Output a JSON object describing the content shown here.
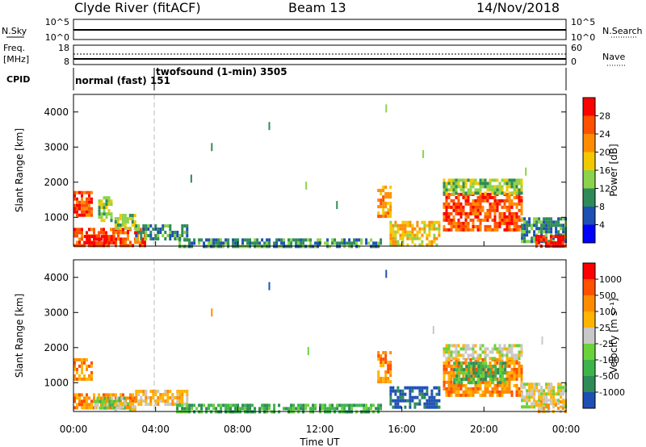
{
  "header": {
    "station": "Clyde River (fitACF)",
    "beam": "Beam 13",
    "date": "14/Nov/2018"
  },
  "status_panels": {
    "nsky": {
      "label": "N.Sky",
      "ticks": [
        "10^5",
        "10^0"
      ]
    },
    "nsearch": {
      "label": "N.Search",
      "ticks": [
        "10^5",
        "10^0"
      ]
    },
    "freq": {
      "label_line1": "Freq.",
      "label_line2": "[MHz]",
      "ticks": [
        "18",
        "8"
      ]
    },
    "nave": {
      "label": "Nave",
      "ticks": [
        "60",
        "0"
      ]
    },
    "cpid": {
      "label": "CPID",
      "segments": [
        {
          "text": "normal (fast) 151",
          "start_hour": 0.0,
          "end_hour": 4.0
        },
        {
          "text": "twofsound (1-min) 3505",
          "start_hour": 4.0,
          "end_hour": 24.0
        }
      ]
    }
  },
  "chart_data": [
    {
      "type": "heatmap",
      "panel": "power",
      "ylabel": "Slant Range [km]",
      "xlim_hours": [
        0,
        24
      ],
      "ylim_km": [
        180,
        4500
      ],
      "yticks": [
        1000,
        2000,
        3000,
        4000
      ],
      "colorbar": {
        "label": "Power [dB]",
        "levels": [
          "4",
          "8",
          "12",
          "16",
          "20",
          "24",
          "28"
        ],
        "colors": [
          "#0000ff",
          "#1e50b4",
          "#2e8b57",
          "#8bd34a",
          "#f2c800",
          "#ff8c00",
          "#ff5000",
          "#ff0000"
        ]
      },
      "regions": [
        {
          "x0": 0.0,
          "x1": 0.9,
          "y0": 1100,
          "y1": 1750,
          "level": 6
        },
        {
          "x0": 0.0,
          "x1": 3.5,
          "y0": 200,
          "y1": 700,
          "level": 6
        },
        {
          "x0": 0.5,
          "x1": 2.0,
          "y0": 250,
          "y1": 500,
          "level": 7
        },
        {
          "x0": 1.2,
          "x1": 1.9,
          "y0": 900,
          "y1": 1600,
          "level": 3
        },
        {
          "x0": 2.0,
          "x1": 3.0,
          "y0": 700,
          "y1": 1100,
          "level": 3
        },
        {
          "x0": 3.0,
          "x1": 5.5,
          "y0": 400,
          "y1": 800,
          "level": 2
        },
        {
          "x0": 5.0,
          "x1": 15.0,
          "y0": 200,
          "y1": 400,
          "level": 2
        },
        {
          "x0": 14.8,
          "x1": 15.4,
          "y0": 1000,
          "y1": 1900,
          "level": 5
        },
        {
          "x0": 15.4,
          "x1": 17.8,
          "y0": 250,
          "y1": 900,
          "level": 4
        },
        {
          "x0": 18.0,
          "x1": 21.8,
          "y0": 600,
          "y1": 1700,
          "level": 6
        },
        {
          "x0": 18.0,
          "x1": 21.8,
          "y0": 1700,
          "y1": 2100,
          "level": 3
        },
        {
          "x0": 21.8,
          "x1": 24.0,
          "y0": 300,
          "y1": 1000,
          "level": 2
        },
        {
          "x0": 22.5,
          "x1": 24.0,
          "y0": 200,
          "y1": 500,
          "level": 7
        }
      ],
      "scatter": [
        {
          "x": 15.2,
          "y": 4100,
          "level": 3
        },
        {
          "x": 9.5,
          "y": 3600,
          "level": 2
        },
        {
          "x": 6.7,
          "y": 3000,
          "level": 2
        },
        {
          "x": 17.0,
          "y": 2800,
          "level": 3
        },
        {
          "x": 5.7,
          "y": 2100,
          "level": 2
        },
        {
          "x": 11.3,
          "y": 1900,
          "level": 3
        },
        {
          "x": 12.8,
          "y": 1350,
          "level": 2
        },
        {
          "x": 22.0,
          "y": 2300,
          "level": 3
        }
      ]
    },
    {
      "type": "heatmap",
      "panel": "velocity",
      "ylabel": "Slant Range [km]",
      "xlabel": "Time UT",
      "xlim_hours": [
        0,
        24
      ],
      "ylim_km": [
        180,
        4500
      ],
      "yticks": [
        1000,
        2000,
        3000,
        4000
      ],
      "xticks": [
        "00:00",
        "04:00",
        "08:00",
        "12:00",
        "16:00",
        "20:00",
        "00:00"
      ],
      "colorbar": {
        "label": "Velocity [m s⁻¹]",
        "levels": [
          "1000",
          "500",
          "100",
          "25",
          "-25",
          "-100",
          "-500",
          "-1000"
        ],
        "colors": [
          "#1e50b4",
          "#2e8b57",
          "#3cb44b",
          "#6ad23a",
          "#c8c8c8",
          "#ffb400",
          "#ff8c00",
          "#ff5000",
          "#ff0000"
        ]
      },
      "regions": [
        {
          "x0": 0.0,
          "x1": 0.9,
          "y0": 1100,
          "y1": 1700,
          "level": 6
        },
        {
          "x0": 0.0,
          "x1": 3.0,
          "y0": 250,
          "y1": 700,
          "level": 6
        },
        {
          "x0": 1.0,
          "x1": 2.5,
          "y0": 300,
          "y1": 600,
          "level": 3
        },
        {
          "x0": 2.0,
          "x1": 3.0,
          "y0": 250,
          "y1": 450,
          "level": 4
        },
        {
          "x0": 3.0,
          "x1": 5.5,
          "y0": 400,
          "y1": 800,
          "level": 5
        },
        {
          "x0": 5.0,
          "x1": 15.0,
          "y0": 200,
          "y1": 400,
          "level": 2
        },
        {
          "x0": 14.8,
          "x1": 15.4,
          "y0": 1000,
          "y1": 1900,
          "level": 6
        },
        {
          "x0": 15.4,
          "x1": 17.8,
          "y0": 300,
          "y1": 900,
          "level": 0
        },
        {
          "x0": 18.0,
          "x1": 21.8,
          "y0": 600,
          "y1": 1700,
          "level": 6
        },
        {
          "x0": 18.5,
          "x1": 21.0,
          "y0": 1000,
          "y1": 1600,
          "level": 2
        },
        {
          "x0": 18.0,
          "x1": 21.8,
          "y0": 1700,
          "y1": 2100,
          "level": 4
        },
        {
          "x0": 21.8,
          "x1": 24.0,
          "y0": 300,
          "y1": 1000,
          "level": 4
        },
        {
          "x0": 22.5,
          "x1": 24.0,
          "y0": 200,
          "y1": 500,
          "level": 5
        }
      ],
      "scatter": [
        {
          "x": 15.2,
          "y": 4100,
          "level": 0
        },
        {
          "x": 9.5,
          "y": 3750,
          "level": 0
        },
        {
          "x": 17.5,
          "y": 2500,
          "level": 4
        },
        {
          "x": 22.8,
          "y": 2200,
          "level": 4
        },
        {
          "x": 11.4,
          "y": 1900,
          "level": 3
        },
        {
          "x": 6.7,
          "y": 3000,
          "level": 6
        }
      ]
    }
  ]
}
